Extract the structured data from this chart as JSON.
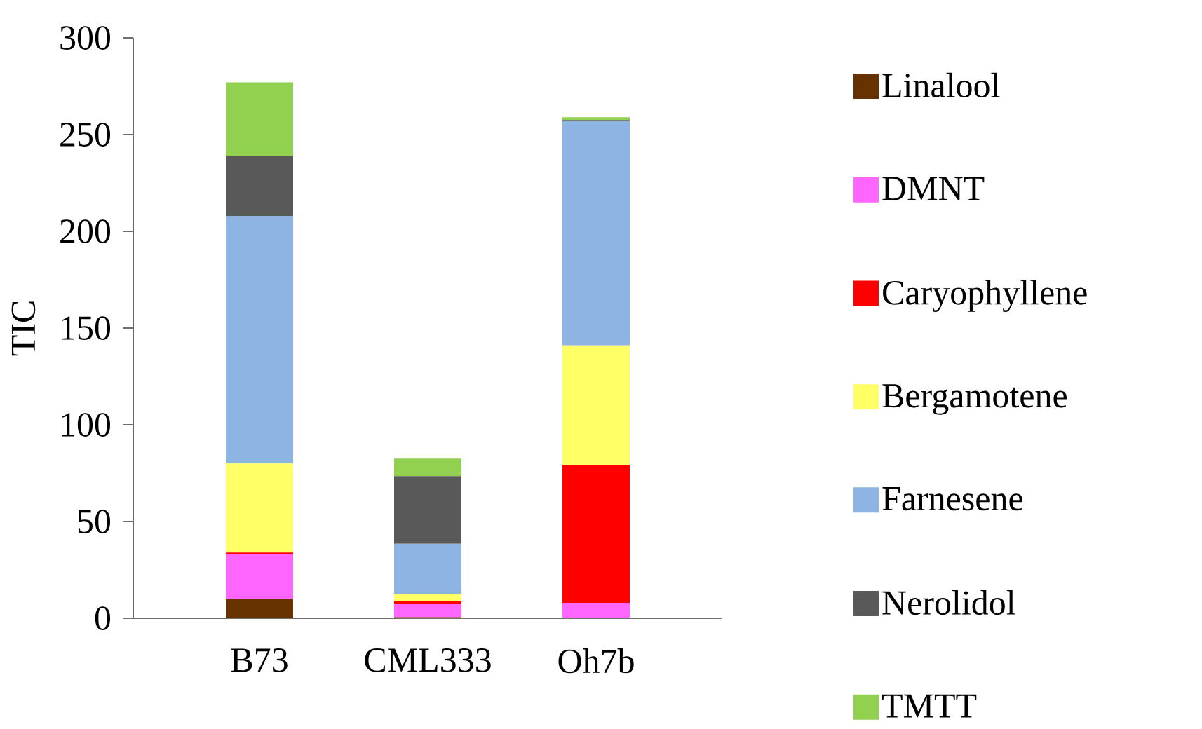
{
  "chart_data": {
    "type": "bar",
    "stacked": true,
    "ylabel": "TIC",
    "categories": [
      "B73",
      "CML333",
      "Oh7b"
    ],
    "series": [
      {
        "name": "Linalool",
        "color": "#663300",
        "values": [
          10,
          0.5,
          0
        ]
      },
      {
        "name": "DMNT",
        "color": "#ff66ff",
        "values": [
          23,
          7,
          8
        ]
      },
      {
        "name": "Caryophyllene",
        "color": "#ff0000",
        "values": [
          1,
          1.5,
          71
        ]
      },
      {
        "name": "Bergamotene",
        "color": "#ffff66",
        "values": [
          46,
          3.5,
          62
        ]
      },
      {
        "name": "Farnesene",
        "color": "#8eb4e3",
        "values": [
          128,
          26,
          116
        ]
      },
      {
        "name": "Nerolidol",
        "color": "#595959",
        "values": [
          31,
          35,
          0.5
        ]
      },
      {
        "name": "TMTT",
        "color": "#92d050",
        "values": [
          38,
          9,
          1.5
        ]
      }
    ],
    "ylim": [
      0,
      300
    ],
    "yticks": [
      0,
      50,
      100,
      150,
      200,
      250,
      300
    ],
    "grid": false,
    "legend": "right"
  }
}
